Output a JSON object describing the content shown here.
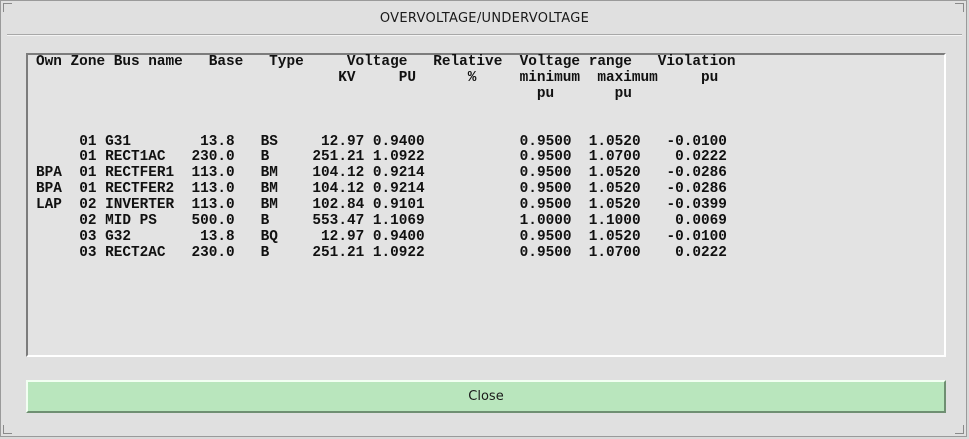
{
  "window": {
    "title": "OVERVOLTAGE/UNDERVOLTAGE"
  },
  "report": {
    "header_lines": [
      "Own Zone Bus name   Base   Type     Voltage   Relative  Voltage range   Violation",
      "                                   KV     PU      %     minimum  maximum     pu",
      "                                                          pu       pu"
    ],
    "columns": [
      "Own",
      "Zone",
      "Bus name",
      "Base",
      "Type",
      "Voltage KV",
      "Voltage PU",
      "Relative %",
      "Voltage range minimum pu",
      "Voltage range maximum pu",
      "Violation pu"
    ],
    "rows": [
      {
        "own": "",
        "zone": "01",
        "bus_name": "G31",
        "base": "13.8",
        "type": "BS",
        "kv": "12.97",
        "pu": "0.9400",
        "relative": "",
        "minimum": "0.9500",
        "maximum": "1.0520",
        "violation": "-0.0100"
      },
      {
        "own": "",
        "zone": "01",
        "bus_name": "RECT1AC",
        "base": "230.0",
        "type": "B",
        "kv": "251.21",
        "pu": "1.0922",
        "relative": "",
        "minimum": "0.9500",
        "maximum": "1.0700",
        "violation": "0.0222"
      },
      {
        "own": "BPA",
        "zone": "01",
        "bus_name": "RECTFER1",
        "base": "113.0",
        "type": "BM",
        "kv": "104.12",
        "pu": "0.9214",
        "relative": "",
        "minimum": "0.9500",
        "maximum": "1.0520",
        "violation": "-0.0286"
      },
      {
        "own": "BPA",
        "zone": "01",
        "bus_name": "RECTFER2",
        "base": "113.0",
        "type": "BM",
        "kv": "104.12",
        "pu": "0.9214",
        "relative": "",
        "minimum": "0.9500",
        "maximum": "1.0520",
        "violation": "-0.0286"
      },
      {
        "own": "LAP",
        "zone": "02",
        "bus_name": "INVERTER",
        "base": "113.0",
        "type": "BM",
        "kv": "102.84",
        "pu": "0.9101",
        "relative": "",
        "minimum": "0.9500",
        "maximum": "1.0520",
        "violation": "-0.0399"
      },
      {
        "own": "",
        "zone": "02",
        "bus_name": "MID PS",
        "base": "500.0",
        "type": "B",
        "kv": "553.47",
        "pu": "1.1069",
        "relative": "",
        "minimum": "1.0000",
        "maximum": "1.1000",
        "violation": "0.0069"
      },
      {
        "own": "",
        "zone": "03",
        "bus_name": "G32",
        "base": "13.8",
        "type": "BQ",
        "kv": "12.97",
        "pu": "0.9400",
        "relative": "",
        "minimum": "0.9500",
        "maximum": "1.0520",
        "violation": "-0.0100"
      },
      {
        "own": "",
        "zone": "03",
        "bus_name": "RECT2AC",
        "base": "230.0",
        "type": "B",
        "kv": "251.21",
        "pu": "1.0922",
        "relative": "",
        "minimum": "0.9500",
        "maximum": "1.0700",
        "violation": "0.0222"
      }
    ]
  },
  "buttons": {
    "close_label": "Close"
  },
  "colors": {
    "window_bg": "#e0e0e0",
    "close_button_bg": "#b9e6bd"
  }
}
